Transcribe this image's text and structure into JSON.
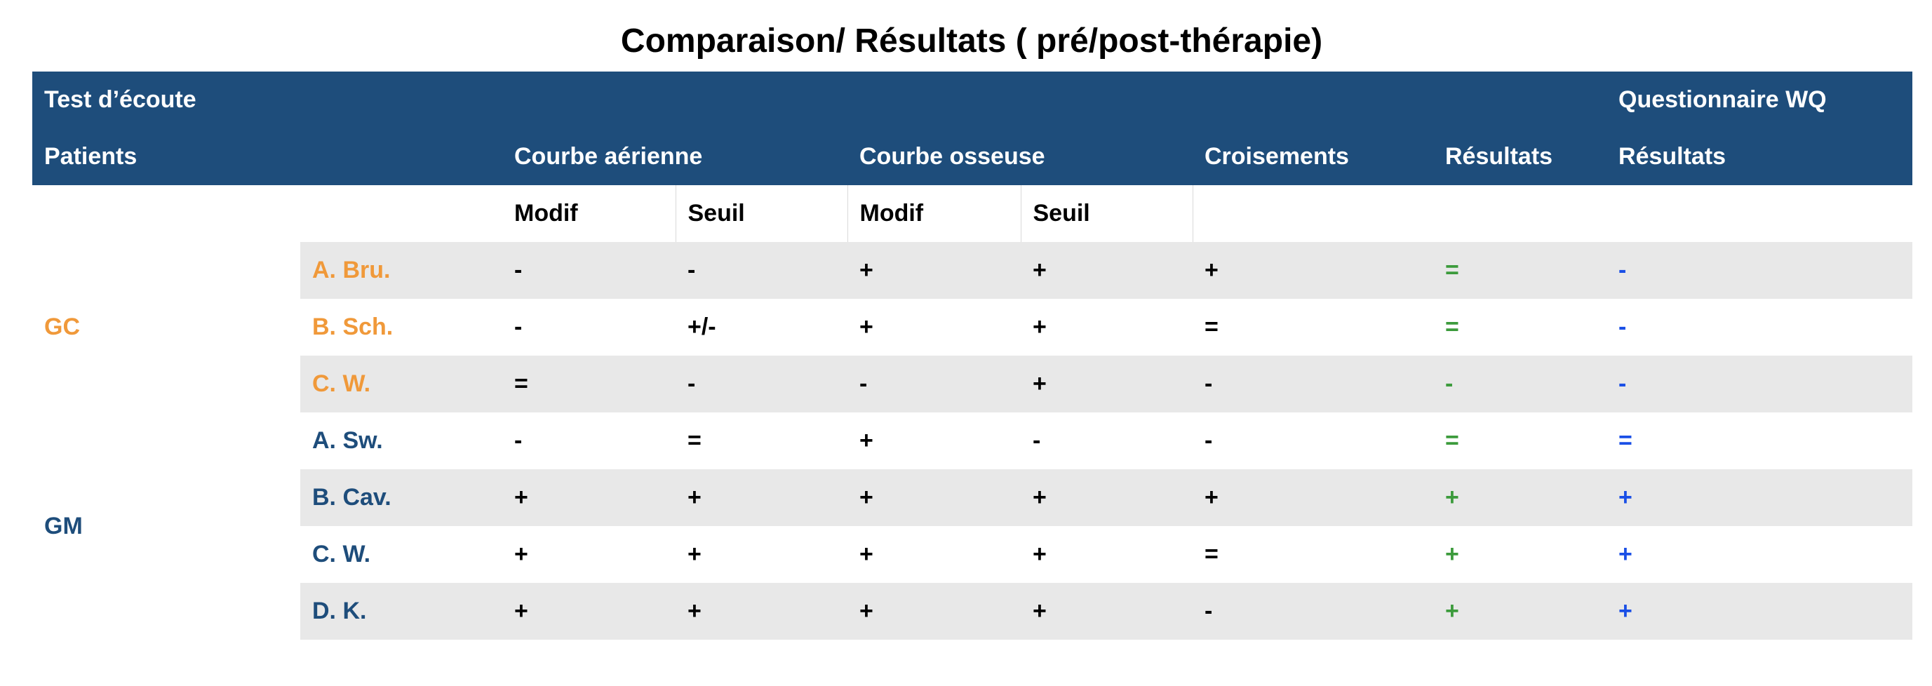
{
  "title": "Comparaison/ Résultats ( pré/post-thérapie)",
  "header_row1": {
    "test": "Test d’écoute",
    "questionnaire": "Questionnaire WQ"
  },
  "header_row2": {
    "patients": "Patients",
    "courbe_aerienne": "Courbe aérienne",
    "courbe_osseuse": "Courbe osseuse",
    "croisements": "Croisements",
    "resultats_test": "Résultats",
    "resultats_wq": "Résultats"
  },
  "subheaders": {
    "aer_modif": "Modif",
    "aer_seuil": "Seuil",
    "oss_modif": "Modif",
    "oss_seuil": "Seuil"
  },
  "groups": [
    {
      "name": "GC",
      "color": "#f0993a"
    },
    {
      "name": "GM",
      "color": "#1e4d7b"
    }
  ],
  "rows": [
    {
      "patient": "A. Bru.",
      "aer_modif": "-",
      "aer_seuil": "-",
      "oss_modif": "+",
      "oss_seuil": "+",
      "croisements": "+",
      "resultats": "=",
      "wq": "-"
    },
    {
      "patient": "B. Sch.",
      "aer_modif": "-",
      "aer_seuil": "+/-",
      "oss_modif": "+",
      "oss_seuil": "+",
      "croisements": "=",
      "resultats": "=",
      "wq": "-"
    },
    {
      "patient": "C. W.",
      "aer_modif": "=",
      "aer_seuil": "-",
      "oss_modif": "-",
      "oss_seuil": "+",
      "croisements": "-",
      "resultats": "-",
      "wq": "-"
    },
    {
      "patient": "A. Sw.",
      "aer_modif": "-",
      "aer_seuil": "=",
      "oss_modif": "+",
      "oss_seuil": "-",
      "croisements": "-",
      "resultats": "=",
      "wq": "="
    },
    {
      "patient": "B. Cav.",
      "aer_modif": "+",
      "aer_seuil": "+",
      "oss_modif": "+",
      "oss_seuil": "+",
      "croisements": "+",
      "resultats": "+",
      "wq": "+"
    },
    {
      "patient": "C. W.",
      "aer_modif": "+",
      "aer_seuil": "+",
      "oss_modif": "+",
      "oss_seuil": "+",
      "croisements": "=",
      "resultats": "+",
      "wq": "+"
    },
    {
      "patient": "D. K.",
      "aer_modif": "+",
      "aer_seuil": "+",
      "oss_modif": "+",
      "oss_seuil": "+",
      "croisements": "-",
      "resultats": "+",
      "wq": "+"
    }
  ],
  "colors": {
    "header_bg": "#1e4d7b",
    "gc": "#f0993a",
    "gm": "#1e4d7b",
    "resultats": "#3c9b3c",
    "wq": "#1a4fe6",
    "stripe": "#e8e8e8"
  }
}
